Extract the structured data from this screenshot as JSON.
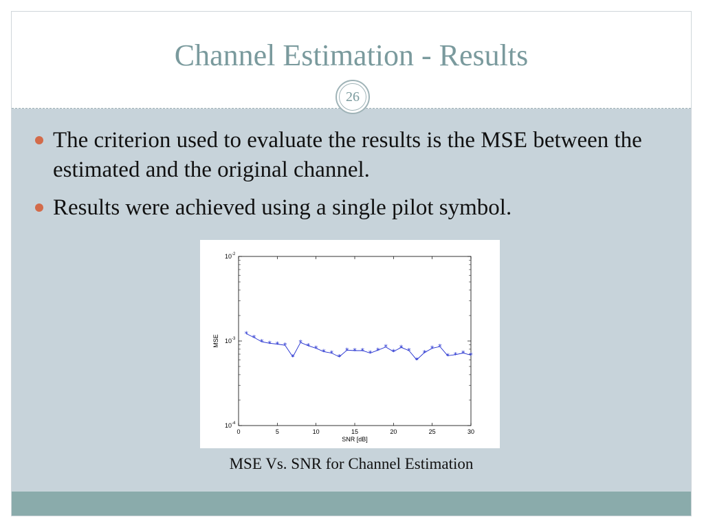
{
  "slide": {
    "title": "Channel Estimation - Results",
    "number": "26",
    "bullets": [
      "The criterion used to evaluate the results is the MSE between the estimated and the original channel.",
      "Results were achieved using a single pilot symbol."
    ],
    "caption": "MSE Vs. SNR for Channel Estimation",
    "colors": {
      "title": "#7a9a9d",
      "bullet": "#d36b4a",
      "body_bg": "#c7d3da",
      "footer": "#8aabab"
    }
  },
  "chart_data": {
    "type": "line",
    "xlabel": "SNR [dB]",
    "ylabel": "MSE",
    "xlim": [
      0,
      30
    ],
    "ylim": [
      0.0001,
      0.01
    ],
    "yscale": "log",
    "xticks": [
      0,
      5,
      10,
      15,
      20,
      25,
      30
    ],
    "yticks": [
      {
        "value": 0.01,
        "base": "10",
        "exp": "-2"
      },
      {
        "value": 0.001,
        "base": "10",
        "exp": "-3"
      },
      {
        "value": 0.0001,
        "base": "10",
        "exp": "-4"
      }
    ],
    "marker": "*",
    "color": "#1f2ccf",
    "grid": false,
    "series": [
      {
        "x": [
          1,
          2,
          3,
          4,
          5,
          6,
          7,
          8,
          9,
          10,
          11,
          12,
          13,
          14,
          15,
          16,
          17,
          18,
          19,
          20,
          21,
          22,
          23,
          24,
          25,
          26,
          27,
          28,
          29,
          30
        ],
        "y": [
          0.00122,
          0.0011,
          0.00098,
          0.00094,
          0.00092,
          0.00089,
          0.00065,
          0.00096,
          0.00088,
          0.00082,
          0.00075,
          0.00072,
          0.00065,
          0.00078,
          0.00077,
          0.00077,
          0.00072,
          0.00078,
          0.00085,
          0.00075,
          0.00084,
          0.00077,
          0.0006,
          0.00073,
          0.00082,
          0.00086,
          0.00067,
          0.00069,
          0.00072,
          0.00068
        ]
      }
    ]
  }
}
